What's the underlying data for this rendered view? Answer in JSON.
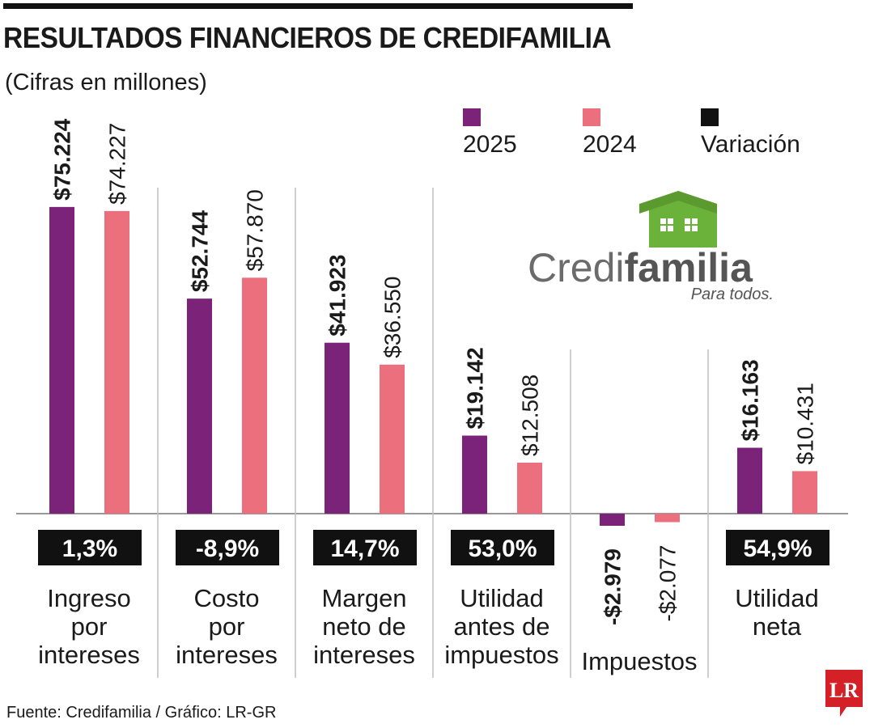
{
  "header": {
    "title": "RESULTADOS FINANCIEROS DE CREDIFAMILIA",
    "subtitle": "(Cifras en millones)"
  },
  "legend": {
    "items": [
      {
        "label": "2025",
        "color": "#7b2378"
      },
      {
        "label": "2024",
        "color": "#ec6f7d"
      },
      {
        "label": "Variación",
        "color": "#111111"
      }
    ]
  },
  "logo": {
    "name": "Credifamilia",
    "brand_part1": "Credi",
    "brand_part2": "familia",
    "tagline": "Para todos.",
    "icon": "house-icon",
    "colors": {
      "green": "#6bb23a",
      "gray": "#6b6b6b",
      "dark": "#555555"
    }
  },
  "footer": {
    "source": "Fuente: Credifamilia / Gráfico: LR-GR",
    "badge": "LR",
    "badge_color": "#d42027"
  },
  "chart_data": {
    "type": "bar",
    "colors": {
      "2025": "#7b2378",
      "2024": "#ec6f7d",
      "variation_bg": "#111111",
      "variation_text": "#ffffff"
    },
    "categories": [
      {
        "name": "Ingreso por intereses",
        "label_lines": [
          "Ingreso",
          "por",
          "intereses"
        ],
        "value_2025": 75224,
        "value_2024": 74227,
        "label_2025": "$75.224",
        "label_2024": "$74.227",
        "variation": "1,3%"
      },
      {
        "name": "Costo por intereses",
        "label_lines": [
          "Costo",
          "por",
          "intereses"
        ],
        "value_2025": 52744,
        "value_2024": 57870,
        "label_2025": "$52.744",
        "label_2024": "$57.870",
        "variation": "-8,9%"
      },
      {
        "name": "Margen neto de intereses",
        "label_lines": [
          "Margen",
          "neto de",
          "intereses"
        ],
        "value_2025": 41923,
        "value_2024": 36550,
        "label_2025": "$41.923",
        "label_2024": "$36.550",
        "variation": "14,7%"
      },
      {
        "name": "Utilidad antes de impuestos",
        "label_lines": [
          "Utilidad",
          "antes de",
          "impuestos"
        ],
        "value_2025": 19142,
        "value_2024": 12508,
        "label_2025": "$19.142",
        "label_2024": "$12.508",
        "variation": "53,0%"
      },
      {
        "name": "Impuestos",
        "label_lines": [
          "Impuestos"
        ],
        "value_2025": -2979,
        "value_2024": -2077,
        "label_2025": "-$2.979",
        "label_2024": "-$2.077",
        "variation": ""
      },
      {
        "name": "Utilidad neta",
        "label_lines": [
          "Utilidad",
          "neta"
        ],
        "value_2025": 16163,
        "value_2024": 10431,
        "label_2025": "$16.163",
        "label_2024": "$10.431",
        "variation": "54,9%"
      }
    ]
  }
}
